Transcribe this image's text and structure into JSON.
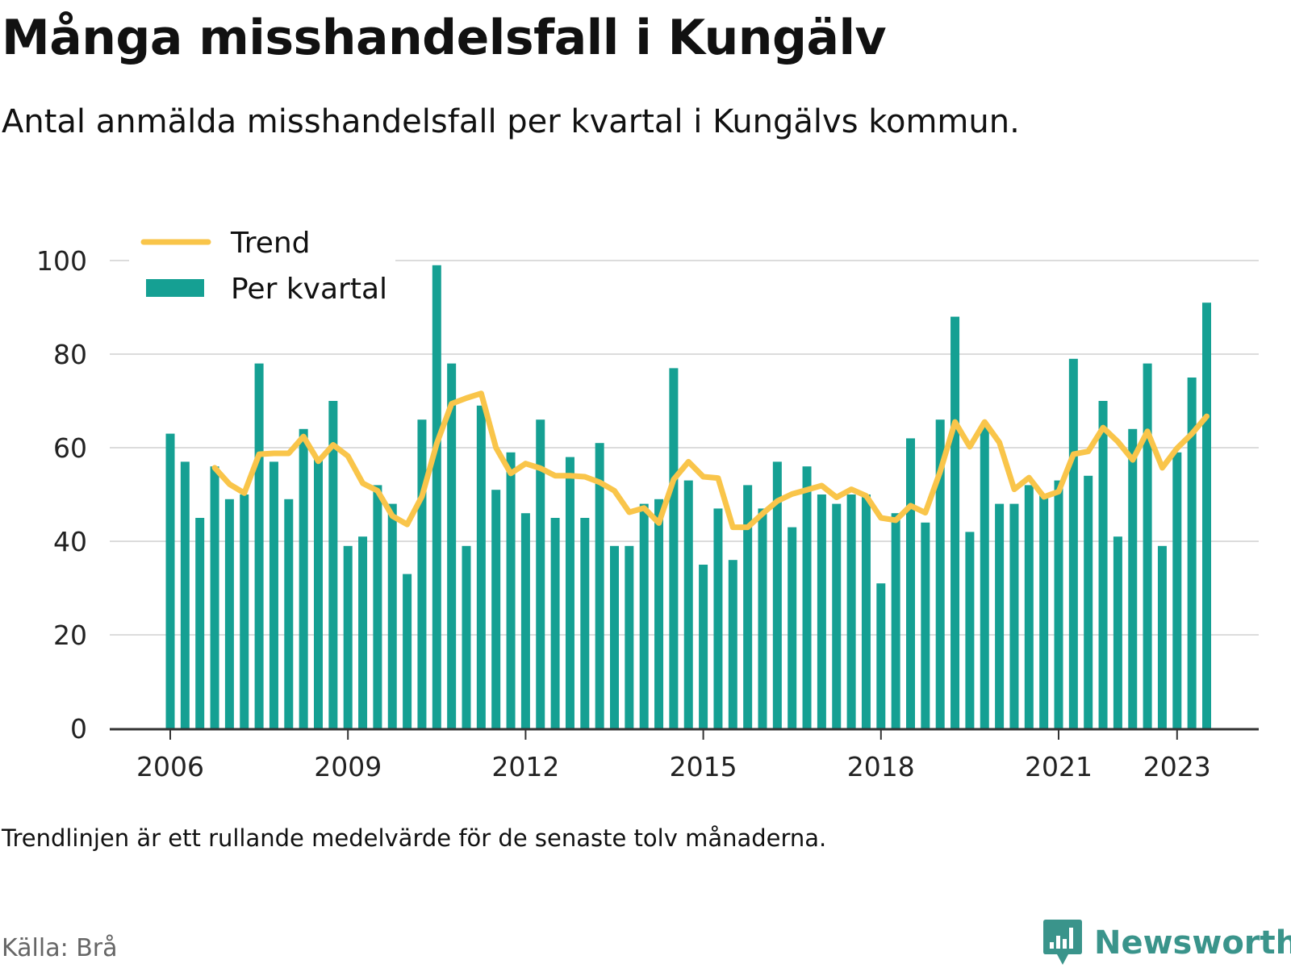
{
  "header": {
    "title": "Många misshandelsfall i Kungälv",
    "subtitle": "Antal anmälda misshandelsfall per kvartal i Kungälvs kommun."
  },
  "footer": {
    "note": "Trendlinjen är ett rullande medelvärde för de senaste tolv månaderna.",
    "source": "Källa: Brå",
    "brand": "Newsworthy"
  },
  "colors": {
    "bar": "#15a093",
    "trend": "#f9c54a",
    "grid": "#dcdcdc",
    "axis": "#333333",
    "brand": "#3a948b"
  },
  "chart_data": {
    "type": "bar",
    "title": "Många misshandelsfall i Kungälv",
    "subtitle": "Antal anmälda misshandelsfall per kvartal i Kungälvs kommun.",
    "ylim": [
      0,
      100
    ],
    "y_ticks": [
      "0",
      "20",
      "40",
      "60",
      "80",
      "100"
    ],
    "y_tick_values": [
      0,
      20,
      40,
      60,
      80,
      100
    ],
    "x_tick_labels": [
      "2006",
      "2009",
      "2012",
      "2015",
      "2018",
      "2021",
      "2023"
    ],
    "x_tick_quarter_index": [
      0,
      12,
      24,
      36,
      48,
      60,
      68
    ],
    "start_period": "2006 Q1",
    "grid": true,
    "legend_position": "top-left",
    "legend": [
      "Trend",
      "Per kvartal"
    ],
    "series": [
      {
        "name": "Per kvartal",
        "type": "bar",
        "values": [
          63,
          57,
          45,
          56,
          49,
          50,
          78,
          57,
          49,
          64,
          58,
          70,
          39,
          41,
          52,
          48,
          33,
          66,
          99,
          78,
          39,
          69,
          51,
          59,
          46,
          66,
          45,
          58,
          45,
          61,
          39,
          39,
          48,
          49,
          77,
          53,
          35,
          47,
          36,
          52,
          47,
          57,
          43,
          56,
          50,
          48,
          50,
          50,
          31,
          46,
          62,
          44,
          66,
          88,
          42,
          65,
          48,
          48,
          52,
          50,
          53,
          79,
          54,
          70,
          41,
          64,
          78,
          39,
          59,
          75,
          91
        ]
      },
      {
        "name": "Trend",
        "type": "line",
        "start_index": 3,
        "values": [
          55.7,
          52.2,
          50.3,
          58.6,
          58.8,
          58.8,
          62.4,
          57.1,
          60.6,
          58.2,
          52.4,
          50.8,
          45.4,
          43.6,
          49.6,
          60.9,
          69.4,
          70.6,
          71.6,
          60.0,
          54.5,
          56.6,
          55.6,
          54.0,
          54.0,
          53.8,
          52.6,
          50.8,
          46.2,
          47.1,
          43.9,
          53.2,
          57.0,
          53.8,
          53.5,
          43.0,
          43.0,
          45.9,
          48.6,
          50.1,
          51.0,
          51.9,
          49.4,
          51.1,
          49.7,
          45.0,
          44.5,
          47.6,
          46.1,
          54.9,
          65.5,
          60.2,
          65.5,
          61.1,
          51.1,
          53.6,
          49.5,
          50.6,
          58.6,
          59.2,
          64.3,
          61.3,
          57.4,
          63.5,
          55.7,
          59.9,
          63.0,
          66.7
        ]
      }
    ]
  }
}
